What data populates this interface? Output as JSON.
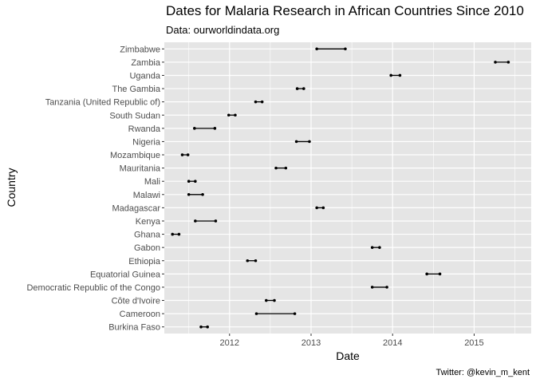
{
  "chart_data": {
    "type": "dumbbell",
    "title": "Dates for Malaria Research in African Countries Since 2010",
    "subtitle": "Data: ourworldindata.org",
    "xlabel": "Date",
    "ylabel": "Country",
    "caption": "Twitter: @kevin_m_kent",
    "xlim": [
      2011.2,
      2015.7
    ],
    "xticks": [
      2012,
      2013,
      2014,
      2015
    ],
    "grid": true,
    "legend": "none",
    "colors": {
      "panel": "#e5e5e5",
      "grid": "#ffffff",
      "mark": "#000000"
    },
    "countries": [
      "Burkina Faso",
      "Cameroon",
      "Côte d'Ivoire",
      "Democratic Republic of the Congo",
      "Equatorial Guinea",
      "Ethiopia",
      "Gabon",
      "Ghana",
      "Kenya",
      "Madagascar",
      "Malawi",
      "Mali",
      "Mauritania",
      "Mozambique",
      "Nigeria",
      "Rwanda",
      "South Sudan",
      "Tanzania (United Republic of)",
      "The Gambia",
      "Uganda",
      "Zambia",
      "Zimbabwe"
    ],
    "start": [
      2011.65,
      2012.33,
      2012.45,
      2013.75,
      2014.42,
      2012.22,
      2013.75,
      2011.3,
      2011.58,
      2013.07,
      2011.5,
      2011.5,
      2012.57,
      2011.42,
      2012.82,
      2011.57,
      2011.99,
      2012.32,
      2012.83,
      2013.98,
      2015.26,
      2013.07
    ],
    "end": [
      2011.73,
      2012.8,
      2012.55,
      2013.93,
      2014.58,
      2012.32,
      2013.84,
      2011.38,
      2011.83,
      2013.15,
      2011.67,
      2011.58,
      2012.69,
      2011.49,
      2012.98,
      2011.82,
      2012.07,
      2012.4,
      2012.91,
      2014.09,
      2015.42,
      2013.42
    ]
  }
}
